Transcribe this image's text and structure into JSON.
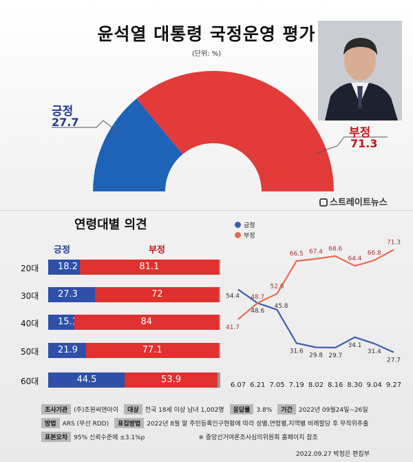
{
  "title": "윤석열 대통령 국정운영 평가",
  "unit": "(단위: %)",
  "logo": "스트레이트뉴스",
  "overall": {
    "pos_label": "긍정",
    "pos_value": "27.7",
    "neg_label": "부정",
    "neg_value": "71.3",
    "colors": {
      "pos": "#1e63b8",
      "neg": "#e33a3a"
    }
  },
  "chart_data": [
    {
      "type": "pie",
      "variant": "half-donut",
      "labels": [
        "긍정",
        "부정"
      ],
      "values": [
        27.7,
        71.3
      ]
    },
    {
      "type": "bar",
      "orientation": "horizontal-stacked",
      "title": "연령대별 의견",
      "categories": [
        "20대",
        "30대",
        "40대",
        "50대",
        "60대"
      ],
      "series": [
        {
          "name": "긍정",
          "values": [
            18.2,
            27.3,
            15.1,
            21.9,
            44.5
          ],
          "color": "#2f4fa8"
        },
        {
          "name": "부정",
          "values": [
            81.1,
            72,
            84,
            77.1,
            53.9
          ],
          "color": "#e03030"
        }
      ]
    },
    {
      "type": "line",
      "x": [
        "6.07",
        "6.21",
        "7.05",
        "7.19",
        "8.02",
        "8.16",
        "8.30",
        "9.04",
        "9.27"
      ],
      "series": [
        {
          "name": "긍정",
          "values": [
            54.4,
            48.6,
            45.8,
            31.6,
            29.8,
            29.7,
            34.1,
            31.4,
            27.7
          ],
          "color": "#3a5fb0"
        },
        {
          "name": "부정",
          "values": [
            41.7,
            48.7,
            52.6,
            66.5,
            67.4,
            68.6,
            64.4,
            66.8,
            71.3
          ],
          "color": "#e86a50"
        }
      ],
      "legend": "top-left"
    }
  ],
  "table": {
    "rows": [
      [
        {
          "k": "조사기관",
          "v": "(주)조원씨앤아이"
        },
        {
          "k": "대상",
          "v": "전국 18세 이상 남녀 1,002명"
        },
        {
          "k": "응답률",
          "v": "3.8%"
        },
        {
          "k": "기간",
          "v": "2022년 09월24일~26일"
        }
      ],
      [
        {
          "k": "방법",
          "v": "ARS (무선 RDD)"
        },
        {
          "k": "표집방법",
          "v": "2022년 8월 말 주민등록인구현황에 따라 성별,연령별,지역별 비례할당 후 무작위추출"
        }
      ],
      [
        {
          "k": "표본오차",
          "v": "95% 신뢰수준에 ±3.1%p"
        },
        {
          "k": "",
          "v": "※ 중앙선거여론조사심의위원회 홈페이지 참조"
        }
      ]
    ]
  },
  "footer": "2022.09.27 박정은 편집부"
}
